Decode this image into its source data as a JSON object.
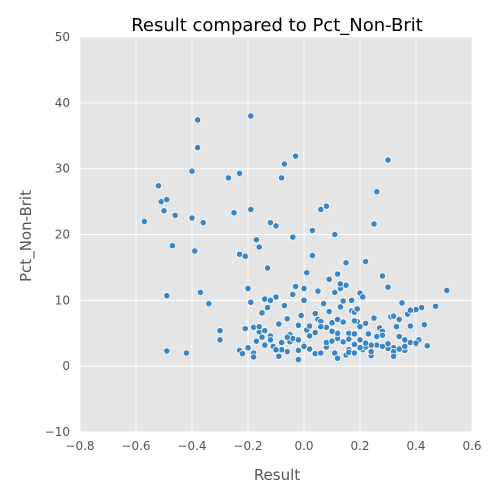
{
  "chart_data": {
    "type": "scatter",
    "title": "Result compared to Pct_Non-Brit",
    "xlabel": "Result",
    "ylabel": "Pct_Non-Brit",
    "xlim": [
      -0.8,
      0.6
    ],
    "ylim": [
      -10,
      50
    ],
    "xticks": [
      "−0.8",
      "−0.6",
      "−0.4",
      "−0.2",
      "0.0",
      "0.2",
      "0.4",
      "0.6"
    ],
    "yticks": [
      "−10",
      "0",
      "10",
      "20",
      "30",
      "40",
      "50"
    ],
    "grid": true,
    "colors": {
      "point": "#3a86c4",
      "point_edge": "#ffffff",
      "plot_bg": "#e5e5e5",
      "grid": "#ffffff"
    },
    "series": [
      {
        "x": [
          -0.57,
          -0.52,
          -0.51,
          -0.5,
          -0.49,
          -0.47,
          -0.46,
          -0.4,
          -0.4,
          -0.38,
          -0.38,
          -0.36,
          -0.34,
          -0.39,
          -0.37,
          -0.27,
          -0.25,
          -0.23,
          -0.23,
          -0.21,
          -0.19,
          -0.19,
          -0.17,
          -0.16,
          -0.12,
          -0.08,
          -0.07,
          -0.03,
          -0.1,
          -0.04,
          -0.49,
          -0.49,
          -0.42,
          -0.3,
          -0.3,
          -0.23,
          -0.21,
          -0.2,
          -0.19,
          -0.18,
          -0.17,
          -0.16,
          -0.15,
          -0.14,
          -0.13,
          -0.12,
          -0.11,
          -0.1,
          -0.09,
          -0.08,
          -0.06,
          -0.05,
          -0.04,
          -0.03,
          -0.02,
          -0.01,
          0.0,
          0.01,
          0.02,
          0.03,
          0.04,
          0.05,
          0.06,
          0.07,
          0.08,
          0.09,
          0.1,
          0.11,
          0.12,
          0.13,
          0.14,
          0.15,
          0.16,
          0.17,
          0.18,
          0.19,
          0.2,
          0.21,
          0.22,
          0.23,
          0.24,
          0.25,
          0.26,
          0.27,
          0.28,
          0.29,
          0.3,
          0.31,
          0.32,
          0.33,
          0.34,
          0.35,
          0.36,
          0.37,
          0.38,
          0.39,
          0.4,
          0.41,
          0.42,
          0.43,
          0.44,
          0.47,
          0.51,
          0.12,
          0.25,
          0.3,
          -0.2,
          -0.18,
          -0.15,
          -0.13,
          -0.11,
          -0.09,
          -0.07,
          -0.05,
          -0.02,
          0.0,
          0.02,
          0.04,
          0.06,
          0.08,
          0.1,
          0.12,
          0.14,
          0.16,
          0.18,
          0.2,
          0.22,
          0.24,
          0.26,
          0.28,
          0.3,
          0.32,
          0.34,
          0.36,
          0.38,
          0.4,
          -0.16,
          -0.12,
          -0.08,
          -0.04,
          0.0,
          0.04,
          0.08,
          0.12,
          0.16,
          0.2,
          0.24,
          0.28,
          0.32,
          0.36,
          0.4,
          -0.14,
          -0.1,
          -0.06,
          -0.02,
          0.02,
          0.06,
          0.1,
          0.14,
          0.18,
          0.22,
          0.26,
          0.3,
          0.34,
          0.05,
          0.07,
          0.09,
          0.11,
          0.13,
          0.15,
          0.17,
          0.19,
          0.21,
          0.01,
          0.03,
          0.11,
          0.13,
          0.15,
          0.0,
          0.02,
          0.1,
          0.18,
          0.22,
          0.08,
          0.14,
          0.2,
          -0.14,
          -0.06,
          0.04,
          0.12,
          0.16,
          0.24,
          0.32,
          -0.22,
          -0.18,
          -0.12,
          -0.02,
          0.06,
          0.18,
          0.28,
          0.34,
          0.38
        ],
        "y": [
          22.0,
          27.4,
          25.0,
          23.6,
          25.3,
          18.3,
          22.9,
          22.5,
          29.6,
          37.4,
          33.2,
          21.8,
          9.5,
          17.5,
          11.2,
          28.6,
          23.3,
          17.0,
          29.3,
          16.7,
          38.0,
          23.8,
          19.2,
          18.1,
          21.8,
          28.6,
          30.7,
          31.9,
          21.3,
          19.6,
          10.7,
          2.3,
          2.0,
          5.4,
          4.0,
          2.4,
          5.7,
          2.8,
          9.7,
          5.9,
          3.8,
          5.2,
          8.1,
          10.2,
          14.9,
          4.6,
          3.0,
          10.5,
          6.4,
          3.6,
          2.2,
          4.8,
          10.9,
          12.1,
          1.0,
          7.7,
          3.2,
          5.5,
          2.7,
          20.6,
          1.8,
          7.1,
          23.8,
          9.6,
          24.3,
          13.2,
          6.6,
          2.0,
          4.2,
          11.8,
          9.9,
          1.7,
          5.0,
          8.4,
          3.3,
          6.8,
          11.1,
          2.5,
          15.9,
          4.9,
          1.9,
          7.3,
          26.5,
          5.8,
          13.7,
          3.0,
          31.3,
          7.5,
          2.8,
          6.0,
          4.4,
          9.6,
          2.4,
          7.9,
          3.6,
          8.5,
          3.3,
          4.0,
          8.9,
          6.3,
          3.1,
          9.1,
          11.5,
          14.0,
          21.6,
          12.0,
          11.8,
          2.0,
          4.4,
          8.9,
          3.0,
          1.5,
          9.2,
          3.7,
          2.4,
          11.8,
          4.6,
          1.9,
          6.8,
          2.9,
          5.4,
          7.1,
          3.8,
          2.5,
          8.2,
          4.0,
          6.5,
          1.6,
          3.2,
          5.3,
          2.7,
          7.6,
          4.5,
          3.0,
          6.1,
          3.5,
          6.0,
          10.0,
          2.5,
          4.2,
          3.0,
          8.0,
          3.6,
          5.0,
          2.1,
          6.0,
          3.2,
          4.7,
          2.2,
          4.0,
          8.6,
          5.4,
          2.5,
          7.2,
          4.0,
          6.1,
          2.0,
          5.3,
          3.7,
          6.9,
          2.9,
          4.5,
          3.4,
          7.1,
          11.4,
          9.5,
          8.3,
          11.2,
          9.0,
          12.3,
          10.0,
          8.7,
          10.5,
          14.2,
          16.8,
          20.0,
          12.5,
          15.7,
          10.0,
          2.6,
          3.8,
          4.9,
          3.5,
          5.9,
          6.7,
          2.8,
          3.2,
          4.4,
          5.1,
          1.2,
          4.1,
          2.2,
          1.5,
          1.9,
          1.4,
          4.0,
          6.2,
          6.0,
          2.0,
          3.0,
          2.6,
          8.5
        ]
      }
    ]
  }
}
